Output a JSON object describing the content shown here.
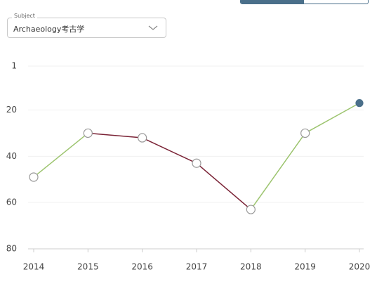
{
  "dropdown": {
    "label": "Subject",
    "value": "Archaeology考古学"
  },
  "chart_data": {
    "type": "line",
    "x": [
      2014,
      2015,
      2016,
      2017,
      2018,
      2019,
      2020
    ],
    "xlim": [
      2014,
      2020
    ],
    "xticks": [
      2014,
      2015,
      2016,
      2017,
      2018,
      2019,
      2020
    ],
    "series": [
      {
        "values": [
          49,
          30,
          32,
          43,
          63,
          30,
          17
        ]
      }
    ],
    "ylim": [
      1,
      80
    ],
    "yticks": [
      1,
      20,
      40,
      60,
      80
    ],
    "y_inverted": true,
    "grid": true,
    "up_color": "#9cc46e",
    "down_color": "#7a2235",
    "highlight_color": "#4a6f8a"
  }
}
